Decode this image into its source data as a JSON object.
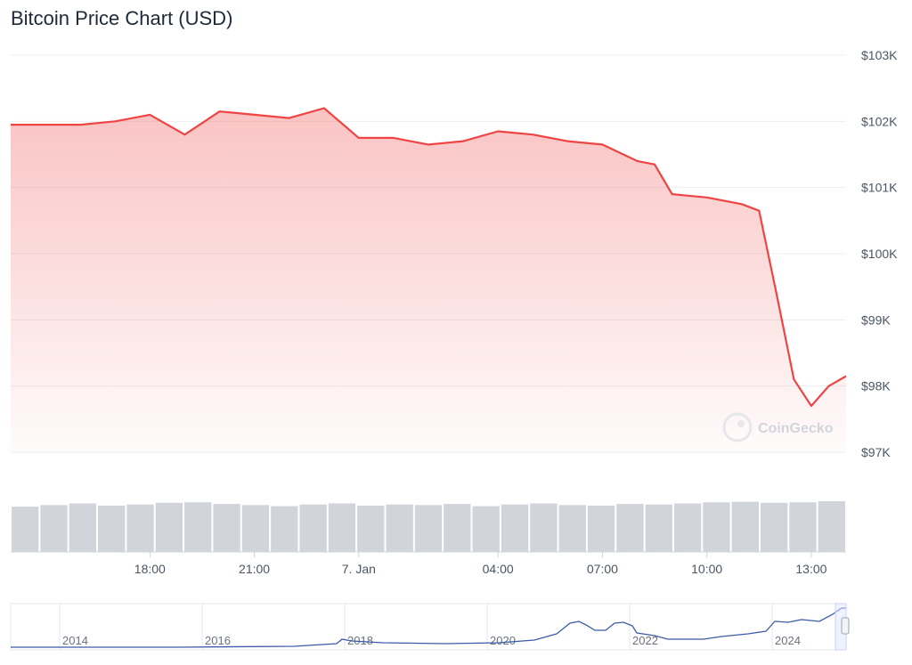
{
  "chart_data": {
    "type": "area",
    "title": "Bitcoin Price Chart (USD)",
    "currency": "USD",
    "ylim": [
      97000,
      103000
    ],
    "y_ticks": [
      "$103K",
      "$102K",
      "$101K",
      "$100K",
      "$99K",
      "$98K",
      "$97K"
    ],
    "x_ticks": [
      "18:00",
      "21:00",
      "7. Jan",
      "04:00",
      "07:00",
      "10:00",
      "13:00"
    ],
    "x": [
      "2025-01-06T14:00",
      "2025-01-06T15:00",
      "2025-01-06T16:00",
      "2025-01-06T17:00",
      "2025-01-06T18:00",
      "2025-01-06T19:00",
      "2025-01-06T20:00",
      "2025-01-06T21:00",
      "2025-01-06T22:00",
      "2025-01-06T23:00",
      "2025-01-07T00:00",
      "2025-01-07T01:00",
      "2025-01-07T02:00",
      "2025-01-07T03:00",
      "2025-01-07T04:00",
      "2025-01-07T05:00",
      "2025-01-07T06:00",
      "2025-01-07T07:00",
      "2025-01-07T08:00",
      "2025-01-07T08:30",
      "2025-01-07T09:00",
      "2025-01-07T10:00",
      "2025-01-07T11:00",
      "2025-01-07T11:30",
      "2025-01-07T12:00",
      "2025-01-07T12:30",
      "2025-01-07T13:00",
      "2025-01-07T13:30",
      "2025-01-07T14:00"
    ],
    "series": [
      {
        "values": [
          101950,
          101950,
          101950,
          102000,
          102100,
          101800,
          102150,
          102100,
          102050,
          102200,
          101750,
          101750,
          101650,
          101700,
          101850,
          101800,
          101700,
          101650,
          101400,
          101350,
          100900,
          100850,
          100750,
          100650,
          99400,
          98100,
          97700,
          98000,
          98150
        ],
        "color": "#ef4444"
      }
    ],
    "volume": {
      "values": [
        0.82,
        0.85,
        0.88,
        0.84,
        0.86,
        0.89,
        0.9,
        0.87,
        0.85,
        0.83,
        0.86,
        0.88,
        0.84,
        0.86,
        0.85,
        0.87,
        0.83,
        0.86,
        0.88,
        0.85,
        0.84,
        0.87,
        0.86,
        0.88,
        0.9,
        0.91,
        0.89,
        0.9,
        0.92
      ],
      "color": "#d1d5db"
    },
    "navigator": {
      "x_ticks": [
        "2014",
        "2016",
        "2018",
        "2020",
        "2022",
        "2024"
      ],
      "color": "#3b5ba8"
    },
    "watermark": "CoinGecko"
  }
}
